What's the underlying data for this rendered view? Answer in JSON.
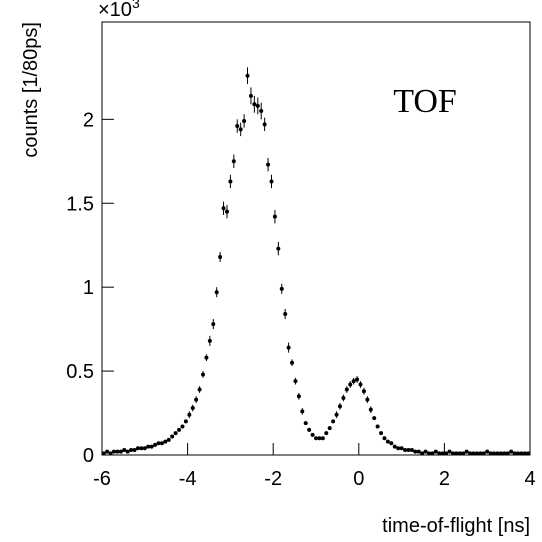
{
  "chart_data": {
    "type": "scatter",
    "annotation": "TOF",
    "xlabel": "time-of-flight [ns]",
    "ylabel": "counts [1/80ps]",
    "y_scale_label": {
      "base": "×10",
      "exponent": "3"
    },
    "color": "#000000",
    "xlim": [
      -6,
      4
    ],
    "ylim": [
      0,
      2.58
    ],
    "xticks": [
      -6,
      -4,
      -2,
      0,
      2,
      4
    ],
    "yticks": [
      0,
      0.5,
      1,
      1.5,
      2
    ],
    "x": [
      -5.96,
      -5.88,
      -5.8,
      -5.72,
      -5.64,
      -5.56,
      -5.48,
      -5.4,
      -5.32,
      -5.24,
      -5.16,
      -5.08,
      -5.0,
      -4.92,
      -4.84,
      -4.76,
      -4.68,
      -4.6,
      -4.52,
      -4.44,
      -4.36,
      -4.28,
      -4.2,
      -4.12,
      -4.04,
      -3.96,
      -3.88,
      -3.8,
      -3.72,
      -3.64,
      -3.56,
      -3.48,
      -3.4,
      -3.32,
      -3.24,
      -3.16,
      -3.08,
      -3.0,
      -2.92,
      -2.84,
      -2.76,
      -2.68,
      -2.6,
      -2.52,
      -2.44,
      -2.36,
      -2.28,
      -2.2,
      -2.12,
      -2.04,
      -1.96,
      -1.88,
      -1.8,
      -1.72,
      -1.64,
      -1.56,
      -1.48,
      -1.4,
      -1.32,
      -1.24,
      -1.16,
      -1.08,
      -1.0,
      -0.92,
      -0.84,
      -0.76,
      -0.68,
      -0.6,
      -0.52,
      -0.44,
      -0.36,
      -0.28,
      -0.2,
      -0.12,
      -0.04,
      0.04,
      0.12,
      0.2,
      0.28,
      0.36,
      0.44,
      0.52,
      0.6,
      0.68,
      0.76,
      0.84,
      0.92,
      1.0,
      1.08,
      1.16,
      1.24,
      1.32,
      1.4,
      1.48,
      1.56,
      1.64,
      1.72,
      1.8,
      1.88,
      1.96,
      2.04,
      2.12,
      2.2,
      2.28,
      2.36,
      2.44,
      2.52,
      2.6,
      2.68,
      2.76,
      2.84,
      2.92,
      3.0,
      3.08,
      3.16,
      3.24,
      3.32,
      3.4,
      3.48,
      3.56,
      3.64,
      3.72,
      3.8,
      3.88,
      3.96
    ],
    "values": [
      0.01,
      0.02,
      0.01,
      0.02,
      0.02,
      0.02,
      0.03,
      0.02,
      0.03,
      0.03,
      0.04,
      0.04,
      0.04,
      0.05,
      0.05,
      0.06,
      0.07,
      0.07,
      0.08,
      0.09,
      0.11,
      0.13,
      0.15,
      0.17,
      0.2,
      0.24,
      0.28,
      0.33,
      0.39,
      0.48,
      0.58,
      0.68,
      0.78,
      0.97,
      1.18,
      1.47,
      1.45,
      1.63,
      1.75,
      1.96,
      1.94,
      1.99,
      2.26,
      2.14,
      2.09,
      2.08,
      2.05,
      1.97,
      1.73,
      1.63,
      1.42,
      1.23,
      0.99,
      0.84,
      0.64,
      0.55,
      0.44,
      0.35,
      0.26,
      0.19,
      0.15,
      0.12,
      0.1,
      0.1,
      0.1,
      0.13,
      0.16,
      0.2,
      0.24,
      0.29,
      0.34,
      0.39,
      0.42,
      0.44,
      0.45,
      0.42,
      0.38,
      0.33,
      0.27,
      0.22,
      0.17,
      0.13,
      0.1,
      0.08,
      0.07,
      0.05,
      0.04,
      0.04,
      0.03,
      0.03,
      0.03,
      0.02,
      0.02,
      0.01,
      0.02,
      0.01,
      0.01,
      0.02,
      0.01,
      0.01,
      0.01,
      0.02,
      0.01,
      0.01,
      0.01,
      0.01,
      0.02,
      0.01,
      0.01,
      0.01,
      0.01,
      0.01,
      0.02,
      0.01,
      0.01,
      0.01,
      0.01,
      0.01,
      0.01,
      0.02,
      0.01,
      0.01,
      0.01,
      0.01,
      0.01
    ],
    "errors": [
      0.01,
      0.01,
      0.01,
      0.01,
      0.01,
      0.01,
      0.01,
      0.01,
      0.01,
      0.01,
      0.01,
      0.01,
      0.01,
      0.01,
      0.01,
      0.01,
      0.01,
      0.01,
      0.01,
      0.01,
      0.01,
      0.01,
      0.01,
      0.01,
      0.01,
      0.02,
      0.02,
      0.02,
      0.02,
      0.02,
      0.02,
      0.03,
      0.03,
      0.03,
      0.03,
      0.04,
      0.04,
      0.04,
      0.04,
      0.04,
      0.04,
      0.04,
      0.05,
      0.05,
      0.05,
      0.05,
      0.05,
      0.04,
      0.04,
      0.04,
      0.04,
      0.04,
      0.03,
      0.03,
      0.03,
      0.02,
      0.02,
      0.02,
      0.02,
      0.01,
      0.01,
      0.01,
      0.01,
      0.01,
      0.01,
      0.01,
      0.01,
      0.01,
      0.02,
      0.02,
      0.02,
      0.02,
      0.02,
      0.02,
      0.02,
      0.02,
      0.02,
      0.02,
      0.02,
      0.01,
      0.01,
      0.01,
      0.01,
      0.01,
      0.01,
      0.01,
      0.01,
      0.01,
      0.01,
      0.01,
      0.01,
      0.01,
      0.01,
      0.01,
      0.01,
      0.01,
      0.01,
      0.01,
      0.01,
      0.01,
      0.01,
      0.01,
      0.01,
      0.01,
      0.01,
      0.01,
      0.01,
      0.01,
      0.01,
      0.01,
      0.01,
      0.01,
      0.01,
      0.01,
      0.01,
      0.01,
      0.01,
      0.01,
      0.01,
      0.01,
      0.01,
      0.01,
      0.01,
      0.01,
      0.01
    ]
  }
}
